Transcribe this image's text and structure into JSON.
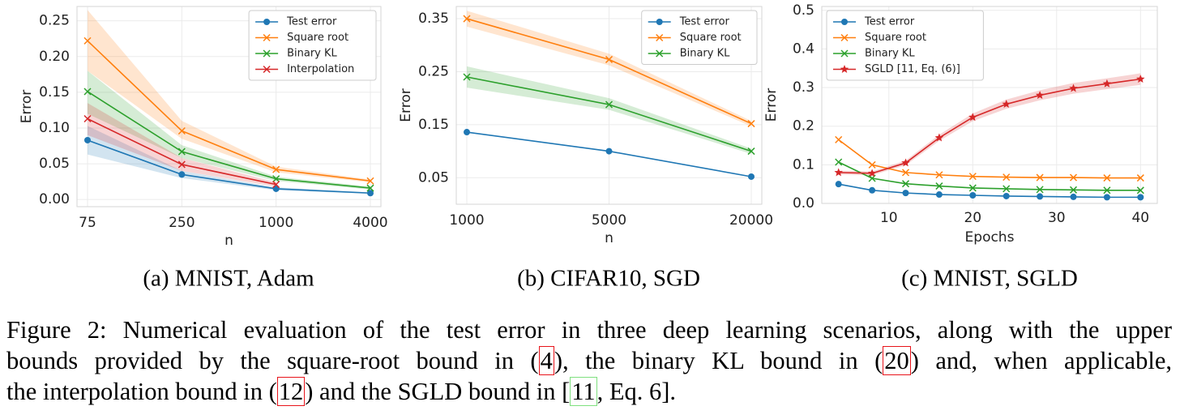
{
  "chart_data": [
    {
      "type": "line",
      "caption": "(a) MNIST, Adam",
      "xlabel": "n",
      "ylabel": "Error",
      "categories": [
        "75",
        "250",
        "1000",
        "4000"
      ],
      "ylim": [
        -0.01,
        0.27
      ],
      "yticks": [
        {
          "value": 0,
          "label": "0.00"
        },
        0.05,
        {
          "value": 0.1,
          "label": "0.10"
        },
        0.15,
        {
          "value": 0.2,
          "label": "0.20"
        },
        0.25
      ],
      "grid": true,
      "legend": "upper right",
      "series": [
        {
          "name": "Test error",
          "color": "#1f77b4",
          "marker": "circle",
          "values": [
            0.083,
            0.035,
            0.015,
            0.009
          ],
          "lower": [
            0.063,
            0.03,
            0.013,
            0.008
          ],
          "upper": [
            0.103,
            0.04,
            0.017,
            0.01
          ]
        },
        {
          "name": "Square root",
          "color": "#ff7f0e",
          "marker": "x",
          "values": [
            0.222,
            0.096,
            0.042,
            0.026
          ],
          "lower": [
            0.18,
            0.085,
            0.038,
            0.024
          ],
          "upper": [
            0.265,
            0.11,
            0.046,
            0.028
          ]
        },
        {
          "name": "Binary KL",
          "color": "#2ca02c",
          "marker": "x",
          "values": [
            0.151,
            0.067,
            0.029,
            0.016
          ],
          "lower": [
            0.12,
            0.058,
            0.026,
            0.014
          ],
          "upper": [
            0.18,
            0.076,
            0.032,
            0.018
          ]
        },
        {
          "name": "Interpolation",
          "color": "#d62728",
          "marker": "x",
          "values": [
            0.113,
            0.049,
            0.021,
            null
          ],
          "lower": [
            0.09,
            0.04,
            0.018,
            null
          ],
          "upper": [
            0.135,
            0.058,
            0.024,
            null
          ]
        }
      ]
    },
    {
      "type": "line",
      "caption": "(b) CIFAR10, SGD",
      "xlabel": "n",
      "ylabel": "Error",
      "categories": [
        "1000",
        "5000",
        "20000"
      ],
      "ylim": [
        0,
        0.373
      ],
      "yticks": [
        0.05,
        0.15,
        0.25,
        0.35
      ],
      "grid": true,
      "legend": "upper right",
      "series": [
        {
          "name": "Test error",
          "color": "#1f77b4",
          "marker": "circle",
          "values": [
            0.136,
            0.1,
            0.052
          ]
        },
        {
          "name": "Square root",
          "color": "#ff7f0e",
          "marker": "x",
          "values": [
            0.35,
            0.273,
            0.152
          ],
          "lower": [
            0.335,
            0.262,
            0.147
          ],
          "upper": [
            0.365,
            0.284,
            0.157
          ]
        },
        {
          "name": "Binary KL",
          "color": "#2ca02c",
          "marker": "x",
          "values": [
            0.24,
            0.188,
            0.1
          ],
          "lower": [
            0.22,
            0.178,
            0.095
          ],
          "upper": [
            0.26,
            0.2,
            0.105
          ]
        }
      ]
    },
    {
      "type": "line",
      "caption": "(c) MNIST, SGLD",
      "xlabel": "Epochs",
      "ylabel": "Error",
      "x": [
        4,
        8,
        12,
        16,
        20,
        24,
        28,
        32,
        36,
        40
      ],
      "xlim": [
        2,
        42
      ],
      "xticks": [
        10,
        20,
        30,
        40
      ],
      "ylim": [
        0,
        0.51
      ],
      "yticks": [
        {
          "value": 0,
          "label": "0.0"
        },
        0.1,
        0.2,
        0.3,
        0.4,
        0.5
      ],
      "grid": true,
      "legend": "upper left",
      "series": [
        {
          "name": "Test error",
          "color": "#1f77b4",
          "marker": "circle",
          "values": [
            0.05,
            0.034,
            0.027,
            0.023,
            0.021,
            0.019,
            0.018,
            0.017,
            0.016,
            0.016
          ]
        },
        {
          "name": "Square root",
          "color": "#ff7f0e",
          "marker": "x",
          "values": [
            0.165,
            0.1,
            0.08,
            0.074,
            0.07,
            0.068,
            0.067,
            0.067,
            0.066,
            0.066
          ]
        },
        {
          "name": "Binary KL",
          "color": "#2ca02c",
          "marker": "x",
          "values": [
            0.107,
            0.065,
            0.051,
            0.045,
            0.04,
            0.038,
            0.036,
            0.035,
            0.034,
            0.034
          ]
        },
        {
          "name": "SGLD [11, Eq. (6)]",
          "color": "#d62728",
          "marker": "star",
          "values": [
            0.08,
            0.078,
            0.105,
            0.17,
            0.223,
            0.257,
            0.28,
            0.298,
            0.31,
            0.322
          ],
          "lower": [
            0.075,
            0.073,
            0.099,
            0.162,
            0.213,
            0.245,
            0.267,
            0.284,
            0.296,
            0.307
          ],
          "upper": [
            0.085,
            0.083,
            0.111,
            0.178,
            0.233,
            0.269,
            0.293,
            0.312,
            0.324,
            0.337
          ]
        }
      ]
    }
  ],
  "caption": {
    "lines": [
      [
        {
          "text": "Figure 2: Numerical evaluation of the test error in three deep learning scenarios, along with the upper"
        }
      ],
      [
        {
          "text": "bounds provided by the square-root bound in ("
        },
        {
          "text": "4",
          "box": "#e8141b"
        },
        {
          "text": "), the binary KL bound in ("
        },
        {
          "text": "20",
          "box": "#e8141b"
        },
        {
          "text": ") and, when applicable,"
        }
      ],
      [
        {
          "text": "the interpolation bound in ("
        },
        {
          "text": "12",
          "box": "#e8141b"
        },
        {
          "text": ") and the SGLD bound in ["
        },
        {
          "text": "11",
          "box": "#7fe07f"
        },
        {
          "text": ", Eq. 6]."
        }
      ]
    ]
  }
}
